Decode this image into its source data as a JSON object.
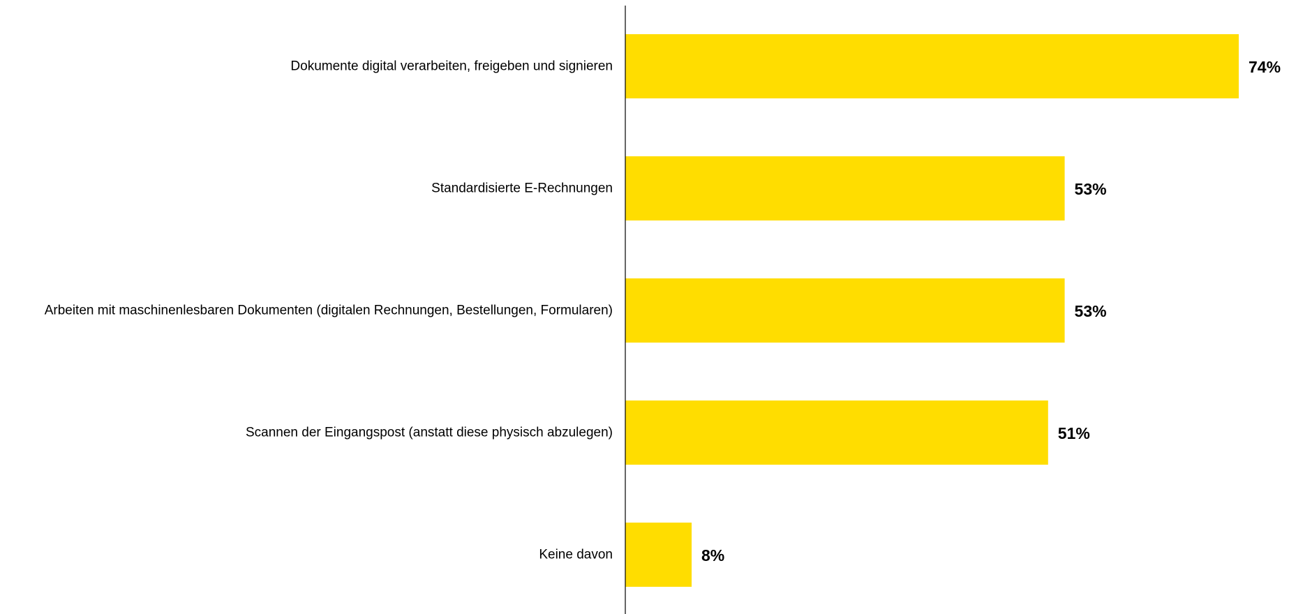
{
  "chart_data": {
    "type": "bar",
    "orientation": "horizontal",
    "categories": [
      "Dokumente digital verarbeiten, freigeben und signieren",
      "Standardisierte E-Rechnungen",
      "Arbeiten mit maschinenlesbaren Dokumenten (digitalen Rechnungen, Bestellungen, Formularen)",
      "Scannen der Eingangspost (anstatt diese physisch abzulegen)",
      "Keine davon"
    ],
    "values": [
      74,
      53,
      53,
      51,
      8
    ],
    "value_labels": [
      "74%",
      "53%",
      "53%",
      "51%",
      "8%"
    ],
    "xlim": [
      0,
      74
    ],
    "unit": "%",
    "grid": false,
    "legend": "none",
    "bar_color": "#FFDD00",
    "axis_color": "#000000"
  }
}
